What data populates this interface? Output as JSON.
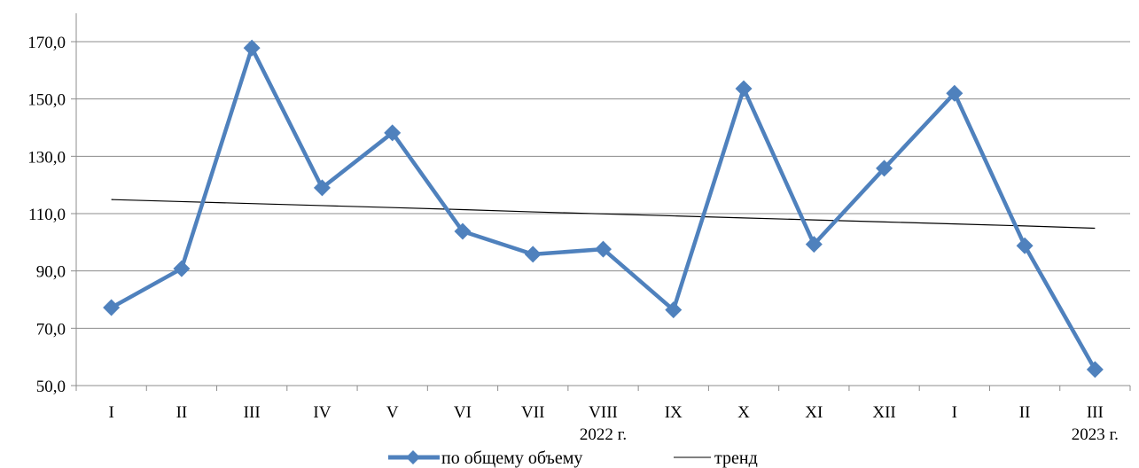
{
  "chart_data": {
    "type": "line",
    "categories": [
      "I",
      "II",
      "III",
      "IV",
      "V",
      "VI",
      "VII",
      "VIII",
      "IX",
      "X",
      "XI",
      "XII",
      "I",
      "II",
      "III"
    ],
    "year_labels": [
      {
        "label": "2022 г.",
        "category_index": 7
      },
      {
        "label": "2023 г.",
        "category_index": 14
      }
    ],
    "series": [
      {
        "name": "по общему объему",
        "color": "#4f81bd",
        "marker": "diamond",
        "values": [
          77.2,
          90.8,
          167.8,
          119.0,
          138.2,
          103.8,
          95.8,
          97.6,
          76.4,
          153.6,
          99.3,
          125.8,
          152.0,
          98.8,
          55.6
        ]
      },
      {
        "name": "тренд",
        "color": "#000000",
        "marker": "none",
        "values": [
          114.9,
          114.2,
          113.5,
          112.8,
          112.1,
          111.4,
          110.6,
          109.9,
          109.2,
          108.5,
          107.8,
          107.1,
          106.4,
          105.7,
          104.9
        ]
      }
    ],
    "y_ticks": [
      "50,0",
      "70,0",
      "90,0",
      "110,0",
      "130,0",
      "150,0",
      "170,0"
    ],
    "ylim": [
      50,
      176
    ],
    "grid": "horizontal",
    "legend_position": "bottom"
  }
}
